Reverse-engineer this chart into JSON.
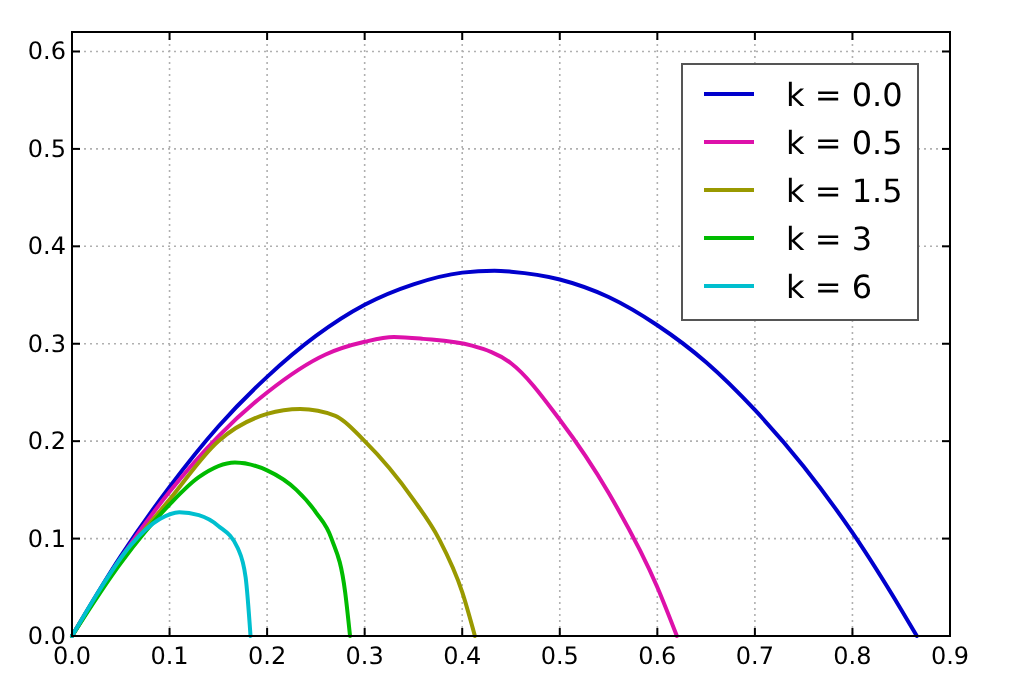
{
  "chart_data": {
    "type": "line",
    "xlim": [
      0,
      0.9
    ],
    "ylim": [
      0,
      0.62
    ],
    "xticks": [
      {
        "value": 0,
        "label": "0.0"
      },
      0.1,
      0.2,
      0.3,
      0.4,
      0.5,
      0.6,
      0.7,
      0.8,
      0.9
    ],
    "yticks": [
      {
        "value": 0,
        "label": "0.0"
      },
      0.1,
      0.2,
      0.3,
      0.4,
      0.5,
      0.6
    ],
    "grid": true,
    "legend": "top right",
    "line_style": "solid",
    "marker": "none",
    "series": [
      {
        "name": "k = 0.0",
        "color": "#0000cc",
        "x": [
          0,
          0.05,
          0.1,
          0.15,
          0.2,
          0.25,
          0.3,
          0.35,
          0.4,
          0.433,
          0.45,
          0.5,
          0.55,
          0.6,
          0.65,
          0.7,
          0.75,
          0.8,
          0.85,
          0.866
        ],
        "values": [
          0,
          0.082,
          0.153,
          0.215,
          0.266,
          0.308,
          0.34,
          0.361,
          0.373,
          0.375,
          0.374,
          0.366,
          0.348,
          0.319,
          0.281,
          0.232,
          0.174,
          0.106,
          0.027,
          0
        ]
      },
      {
        "name": "k = 0.5",
        "color": "#dd11aa",
        "x": [
          0,
          0.05,
          0.1,
          0.15,
          0.2,
          0.26,
          0.3,
          0.33,
          0.36,
          0.41,
          0.45,
          0.5,
          0.55,
          0.6,
          0.62
        ],
        "values": [
          0,
          0.08,
          0.148,
          0.205,
          0.25,
          0.289,
          0.302,
          0.307,
          0.305,
          0.298,
          0.28,
          0.222,
          0.147,
          0.05,
          0
        ]
      },
      {
        "name": "k = 1.5",
        "color": "#999900",
        "x": [
          0,
          0.05,
          0.1,
          0.15,
          0.2,
          0.234,
          0.27,
          0.3,
          0.35,
          0.376,
          0.4,
          0.413
        ],
        "values": [
          0,
          0.078,
          0.14,
          0.2,
          0.228,
          0.233,
          0.226,
          0.2,
          0.14,
          0.1,
          0.045,
          0
        ]
      },
      {
        "name": "k = 3",
        "color": "#00bb00",
        "x": [
          0,
          0.05,
          0.1,
          0.13,
          0.167,
          0.2,
          0.23,
          0.25,
          0.266,
          0.28,
          0.285
        ],
        "values": [
          0,
          0.075,
          0.135,
          0.163,
          0.178,
          0.17,
          0.15,
          0.127,
          0.1,
          0.045,
          0
        ]
      },
      {
        "name": "k = 6",
        "color": "#00bfcf",
        "x": [
          0,
          0.03,
          0.06,
          0.09,
          0.11,
          0.13,
          0.15,
          0.17,
          0.178,
          0.183
        ],
        "values": [
          0,
          0.05,
          0.093,
          0.12,
          0.127,
          0.124,
          0.113,
          0.09,
          0.06,
          0
        ]
      }
    ]
  }
}
